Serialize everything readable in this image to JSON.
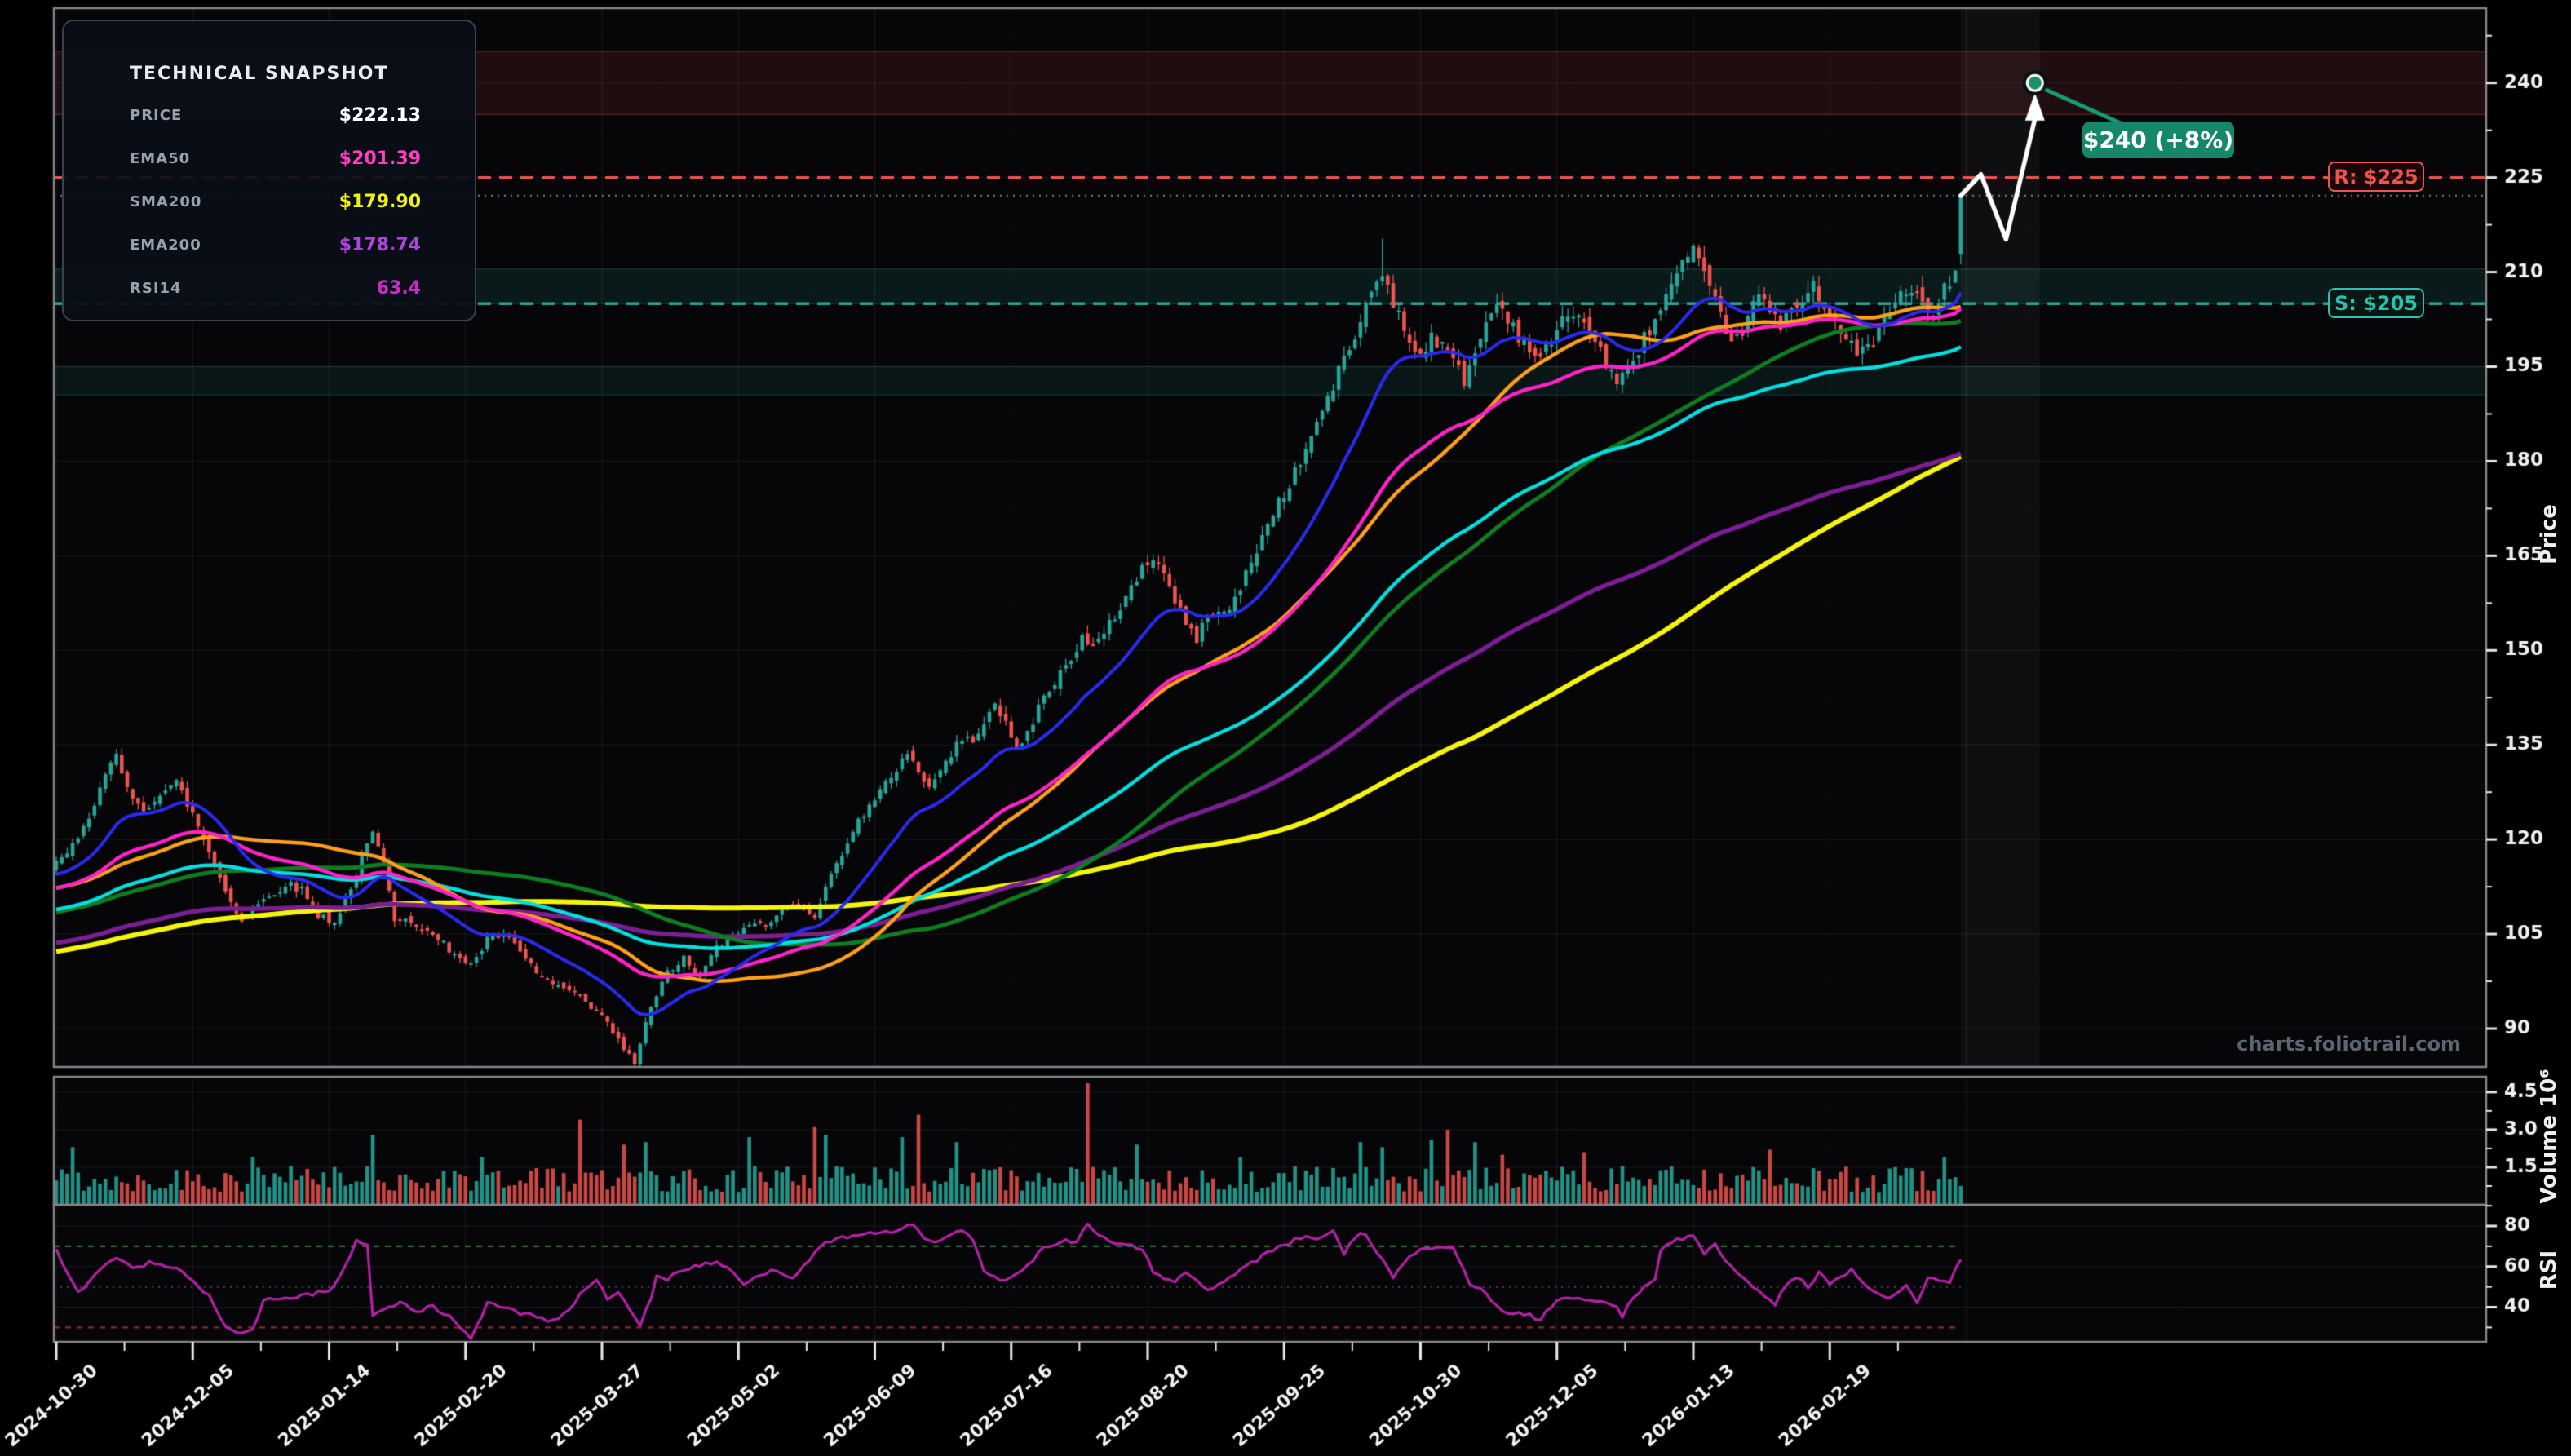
{
  "meta": {
    "watermark": "charts.foliotrail.com"
  },
  "snapshot_panel": {
    "title": "TECHNICAL SNAPSHOT",
    "rows": [
      {
        "label": "PRICE",
        "value": "$222.13",
        "color": "#ffffff"
      },
      {
        "label": "EMA50",
        "value": "$201.39",
        "color": "#ff3fbf"
      },
      {
        "label": "SMA200",
        "value": "$179.90",
        "color": "#f2f211"
      },
      {
        "label": "EMA200",
        "value": "$178.74",
        "color": "#b044d8"
      },
      {
        "label": "RSI14",
        "value": "63.4",
        "color": "#c92bc9"
      }
    ]
  },
  "annotations": {
    "resistance_label": "R: $225",
    "support_label": "S: $205",
    "target_callout": "$240 (+8%)",
    "target_bg": "#17876b",
    "resistance_price": 225,
    "support_price": 205,
    "current_price": 222.13,
    "target_price": 240
  },
  "axes": {
    "price": {
      "title": "Price",
      "ticks": [
        240,
        225,
        210,
        195,
        180,
        165,
        150,
        135,
        120,
        105,
        90
      ]
    },
    "volume": {
      "title": "Volume 10⁶",
      "ticks": [
        4.5,
        3.0,
        1.5
      ]
    },
    "rsi": {
      "title": "RSI",
      "ticks": [
        80,
        60,
        40
      ],
      "overbought": 70,
      "oversold": 30,
      "midline": 50
    },
    "dates": {
      "labels": [
        "2024-10-30",
        "2024-12-05",
        "2025-01-14",
        "2025-02-20",
        "2025-03-27",
        "2025-05-02",
        "2025-06-09",
        "2025-07-16",
        "2025-08-20",
        "2025-09-25",
        "2025-10-30",
        "2025-12-05",
        "2026-01-13",
        "2026-02-19"
      ]
    }
  },
  "chart_data": {
    "type": "candlestick",
    "title": "",
    "n_days": 350,
    "seed": 42,
    "ylim": [
      84,
      252
    ],
    "colors": {
      "up": "#26a69a",
      "down": "#ef5350",
      "rsi_line": "#b320a6",
      "grid": "rgba(255,255,255,0.08)",
      "grid_minor": "rgba(255,255,255,0.04)",
      "spine": "#85858a",
      "projection": "#ffffff",
      "connector": "#1a9a74"
    },
    "prehistory_anchors": [
      [
        -210,
        86
      ],
      [
        -185,
        90
      ],
      [
        -160,
        95
      ],
      [
        -135,
        101
      ],
      [
        -110,
        99
      ],
      [
        -85,
        103
      ],
      [
        -60,
        107
      ],
      [
        -35,
        111
      ],
      [
        -10,
        114
      ],
      [
        -1,
        115.5
      ]
    ],
    "price_anchors": [
      [
        0,
        116
      ],
      [
        3,
        119
      ],
      [
        6,
        124
      ],
      [
        9,
        130
      ],
      [
        11,
        133
      ],
      [
        13,
        128
      ],
      [
        16,
        125
      ],
      [
        19,
        127
      ],
      [
        22,
        129
      ],
      [
        25,
        124
      ],
      [
        28,
        118
      ],
      [
        31,
        112
      ],
      [
        34,
        107
      ],
      [
        36,
        109
      ],
      [
        39,
        111
      ],
      [
        42,
        113
      ],
      [
        45,
        112
      ],
      [
        48,
        108
      ],
      [
        51,
        107
      ],
      [
        54,
        112
      ],
      [
        57,
        119
      ],
      [
        58,
        121
      ],
      [
        60,
        116
      ],
      [
        62,
        107
      ],
      [
        64,
        108
      ],
      [
        67,
        106
      ],
      [
        70,
        104
      ],
      [
        73,
        102
      ],
      [
        76,
        100
      ],
      [
        79,
        104
      ],
      [
        82,
        105
      ],
      [
        85,
        102
      ],
      [
        88,
        99
      ],
      [
        91,
        97
      ],
      [
        94,
        96
      ],
      [
        97,
        94
      ],
      [
        100,
        92
      ],
      [
        103,
        88
      ],
      [
        106,
        84.5
      ],
      [
        108,
        91
      ],
      [
        110,
        95
      ],
      [
        112,
        99
      ],
      [
        115,
        101
      ],
      [
        118,
        98
      ],
      [
        121,
        103
      ],
      [
        124,
        104
      ],
      [
        127,
        107
      ],
      [
        130,
        106
      ],
      [
        133,
        109
      ],
      [
        136,
        110
      ],
      [
        139,
        108
      ],
      [
        141,
        112
      ],
      [
        143,
        116
      ],
      [
        145,
        120
      ],
      [
        147,
        123
      ],
      [
        150,
        126
      ],
      [
        153,
        130
      ],
      [
        156,
        134
      ],
      [
        158,
        131
      ],
      [
        160,
        128
      ],
      [
        162,
        131
      ],
      [
        165,
        135
      ],
      [
        168,
        136
      ],
      [
        170,
        139
      ],
      [
        172,
        142
      ],
      [
        174,
        138
      ],
      [
        176,
        134
      ],
      [
        178,
        137
      ],
      [
        180,
        141
      ],
      [
        183,
        145
      ],
      [
        186,
        149
      ],
      [
        188,
        152
      ],
      [
        190,
        150
      ],
      [
        193,
        154
      ],
      [
        195,
        157
      ],
      [
        197,
        160
      ],
      [
        199,
        163
      ],
      [
        201,
        165
      ],
      [
        203,
        162
      ],
      [
        205,
        158
      ],
      [
        207,
        154
      ],
      [
        209,
        152
      ],
      [
        211,
        155
      ],
      [
        213,
        157
      ],
      [
        215,
        156
      ],
      [
        217,
        160
      ],
      [
        219,
        164
      ],
      [
        221,
        168
      ],
      [
        223,
        172
      ],
      [
        225,
        175
      ],
      [
        227,
        178
      ],
      [
        229,
        182
      ],
      [
        231,
        186
      ],
      [
        233,
        190
      ],
      [
        235,
        194
      ],
      [
        237,
        198
      ],
      [
        239,
        202
      ],
      [
        241,
        207
      ],
      [
        243,
        210
      ],
      [
        244,
        208
      ],
      [
        246,
        203
      ],
      [
        248,
        199
      ],
      [
        250,
        197
      ],
      [
        252,
        200
      ],
      [
        254,
        198
      ],
      [
        256,
        196
      ],
      [
        258,
        193
      ],
      [
        260,
        197
      ],
      [
        262,
        202
      ],
      [
        264,
        205
      ],
      [
        266,
        203
      ],
      [
        268,
        200
      ],
      [
        270,
        198
      ],
      [
        272,
        196
      ],
      [
        274,
        199
      ],
      [
        276,
        202
      ],
      [
        278,
        204
      ],
      [
        280,
        202
      ],
      [
        282,
        199
      ],
      [
        284,
        196
      ],
      [
        286,
        192
      ],
      [
        288,
        194
      ],
      [
        290,
        198
      ],
      [
        292,
        201
      ],
      [
        294,
        204
      ],
      [
        296,
        208
      ],
      [
        298,
        211
      ],
      [
        300,
        213
      ],
      [
        302,
        209
      ],
      [
        304,
        205
      ],
      [
        306,
        201
      ],
      [
        308,
        199
      ],
      [
        310,
        203
      ],
      [
        312,
        206
      ],
      [
        314,
        204
      ],
      [
        316,
        201
      ],
      [
        318,
        204
      ],
      [
        320,
        206
      ],
      [
        322,
        208
      ],
      [
        324,
        205
      ],
      [
        326,
        202
      ],
      [
        328,
        199
      ],
      [
        330,
        197
      ],
      [
        332,
        198
      ],
      [
        334,
        201
      ],
      [
        336,
        204
      ],
      [
        338,
        206
      ],
      [
        340,
        207
      ],
      [
        342,
        205
      ],
      [
        344,
        203
      ],
      [
        346,
        207
      ],
      [
        348,
        210
      ],
      [
        349,
        222.13
      ]
    ],
    "wick_overrides": [
      {
        "t": 106,
        "low": 83.4
      },
      {
        "t": 243,
        "high": 215.3
      }
    ],
    "last_candle": {
      "open": 212.8,
      "close": 222.13,
      "high": 222.8,
      "low": 211.2
    },
    "volume_profile": {
      "base": 0.5,
      "spikes": [
        [
          3,
          2.3
        ],
        [
          36,
          1.9
        ],
        [
          58,
          2.8
        ],
        [
          78,
          1.9
        ],
        [
          96,
          3.4
        ],
        [
          104,
          2.4
        ],
        [
          108,
          2.5
        ],
        [
          127,
          2.7
        ],
        [
          139,
          3.1
        ],
        [
          141,
          2.8
        ],
        [
          155,
          2.7
        ],
        [
          158,
          3.6
        ],
        [
          165,
          2.5
        ],
        [
          189,
          4.85
        ],
        [
          198,
          2.4
        ],
        [
          217,
          1.9
        ],
        [
          239,
          2.5
        ],
        [
          243,
          2.3
        ],
        [
          252,
          2.6
        ],
        [
          255,
          3.0
        ],
        [
          260,
          2.5
        ],
        [
          265,
          2.0
        ],
        [
          280,
          2.1
        ],
        [
          314,
          2.2
        ],
        [
          346,
          1.9
        ]
      ]
    },
    "rsi_anchors": [
      [
        0,
        68
      ],
      [
        4,
        47
      ],
      [
        8,
        58
      ],
      [
        11,
        65
      ],
      [
        14,
        60
      ],
      [
        18,
        62
      ],
      [
        22,
        60
      ],
      [
        26,
        50
      ],
      [
        28,
        45
      ],
      [
        30,
        35
      ],
      [
        32,
        28
      ],
      [
        34,
        28
      ],
      [
        36,
        29
      ],
      [
        38,
        43
      ],
      [
        42,
        45
      ],
      [
        46,
        46
      ],
      [
        50,
        48
      ],
      [
        53,
        60
      ],
      [
        55,
        73
      ],
      [
        57,
        70
      ],
      [
        58,
        36
      ],
      [
        60,
        40
      ],
      [
        63,
        42
      ],
      [
        66,
        38
      ],
      [
        69,
        40
      ],
      [
        72,
        35
      ],
      [
        74,
        30
      ],
      [
        76,
        25
      ],
      [
        79,
        42
      ],
      [
        82,
        40
      ],
      [
        85,
        37
      ],
      [
        88,
        35
      ],
      [
        91,
        33
      ],
      [
        94,
        38
      ],
      [
        97,
        50
      ],
      [
        99,
        54
      ],
      [
        101,
        43
      ],
      [
        103,
        48
      ],
      [
        105,
        40
      ],
      [
        107,
        31
      ],
      [
        109,
        45
      ],
      [
        110,
        55
      ],
      [
        112,
        54
      ],
      [
        114,
        57
      ],
      [
        117,
        60
      ],
      [
        120,
        62
      ],
      [
        123,
        60
      ],
      [
        126,
        52
      ],
      [
        129,
        56
      ],
      [
        132,
        58
      ],
      [
        135,
        55
      ],
      [
        138,
        63
      ],
      [
        140,
        70
      ],
      [
        143,
        74
      ],
      [
        146,
        75
      ],
      [
        149,
        76
      ],
      [
        152,
        77
      ],
      [
        155,
        79
      ],
      [
        157,
        80
      ],
      [
        159,
        74
      ],
      [
        161,
        71
      ],
      [
        163,
        75
      ],
      [
        166,
        77
      ],
      [
        168,
        74
      ],
      [
        170,
        57
      ],
      [
        172,
        55
      ],
      [
        174,
        53
      ],
      [
        176,
        56
      ],
      [
        179,
        63
      ],
      [
        181,
        70
      ],
      [
        184,
        72
      ],
      [
        187,
        73
      ],
      [
        189,
        81
      ],
      [
        191,
        75
      ],
      [
        194,
        72
      ],
      [
        197,
        70
      ],
      [
        199,
        69
      ],
      [
        201,
        57
      ],
      [
        203,
        55
      ],
      [
        205,
        53
      ],
      [
        207,
        57
      ],
      [
        209,
        54
      ],
      [
        211,
        48
      ],
      [
        213,
        52
      ],
      [
        215,
        55
      ],
      [
        218,
        60
      ],
      [
        221,
        65
      ],
      [
        224,
        70
      ],
      [
        227,
        73
      ],
      [
        230,
        75
      ],
      [
        232,
        74
      ],
      [
        234,
        77
      ],
      [
        236,
        67
      ],
      [
        239,
        77
      ],
      [
        241,
        72
      ],
      [
        243,
        63
      ],
      [
        245,
        55
      ],
      [
        248,
        65
      ],
      [
        250,
        69
      ],
      [
        253,
        70
      ],
      [
        256,
        69
      ],
      [
        259,
        52
      ],
      [
        262,
        47
      ],
      [
        264,
        40
      ],
      [
        266,
        36
      ],
      [
        268,
        37
      ],
      [
        270,
        36
      ],
      [
        272,
        34
      ],
      [
        275,
        43
      ],
      [
        278,
        45
      ],
      [
        281,
        44
      ],
      [
        284,
        42
      ],
      [
        286,
        40
      ],
      [
        287,
        36
      ],
      [
        289,
        45
      ],
      [
        291,
        50
      ],
      [
        293,
        55
      ],
      [
        294,
        68
      ],
      [
        296,
        72
      ],
      [
        298,
        74
      ],
      [
        300,
        76
      ],
      [
        302,
        66
      ],
      [
        304,
        72
      ],
      [
        306,
        62
      ],
      [
        309,
        55
      ],
      [
        312,
        48
      ],
      [
        315,
        42
      ],
      [
        317,
        50
      ],
      [
        319,
        55
      ],
      [
        321,
        50
      ],
      [
        323,
        57
      ],
      [
        325,
        52
      ],
      [
        327,
        55
      ],
      [
        329,
        58
      ],
      [
        331,
        52
      ],
      [
        333,
        48
      ],
      [
        335,
        44
      ],
      [
        337,
        47
      ],
      [
        339,
        50
      ],
      [
        341,
        43
      ],
      [
        343,
        55
      ],
      [
        345,
        52
      ],
      [
        347,
        53
      ],
      [
        349,
        63.4
      ]
    ],
    "moving_averages": [
      {
        "name": "SMA200",
        "method": "sma",
        "period": 200,
        "color": "#f5f50a",
        "width": 6
      },
      {
        "name": "EMA200",
        "method": "ema",
        "period": 200,
        "color": "#7c1d94",
        "width": 5.5
      },
      {
        "name": "SMA100",
        "method": "sma",
        "period": 100,
        "color": "#0e7d20",
        "width": 5
      },
      {
        "name": "EMA100",
        "method": "ema",
        "period": 100,
        "color": "#00dede",
        "width": 4.5
      },
      {
        "name": "SMA50",
        "method": "sma",
        "period": 50,
        "color": "#ff9f1a",
        "width": 4.5
      },
      {
        "name": "EMA50",
        "method": "ema",
        "period": 50,
        "color": "#ff22c8",
        "width": 4.5
      },
      {
        "name": "EMA20",
        "method": "ema",
        "period": 20,
        "color": "#2a2af0",
        "width": 4
      }
    ],
    "zones": [
      {
        "from": 235,
        "to": 245,
        "fill": "rgba(239,83,80,0.11)",
        "edge": "rgba(239,83,80,0.30)"
      },
      {
        "from": 205,
        "to": 210.5,
        "fill": "rgba(38,166,154,0.12)",
        "edge": "rgba(38,166,154,0.25)"
      },
      {
        "from": 190.5,
        "to": 195,
        "fill": "rgba(38,166,154,0.10)",
        "edge": "rgba(38,166,154,0.20)"
      }
    ],
    "projection": {
      "path": [
        [
          349,
          222.13
        ],
        [
          352.7,
          225.5
        ],
        [
          357.3,
          215.2
        ],
        [
          362.6,
          240
        ]
      ],
      "target": [
        362.6,
        240
      ]
    }
  }
}
